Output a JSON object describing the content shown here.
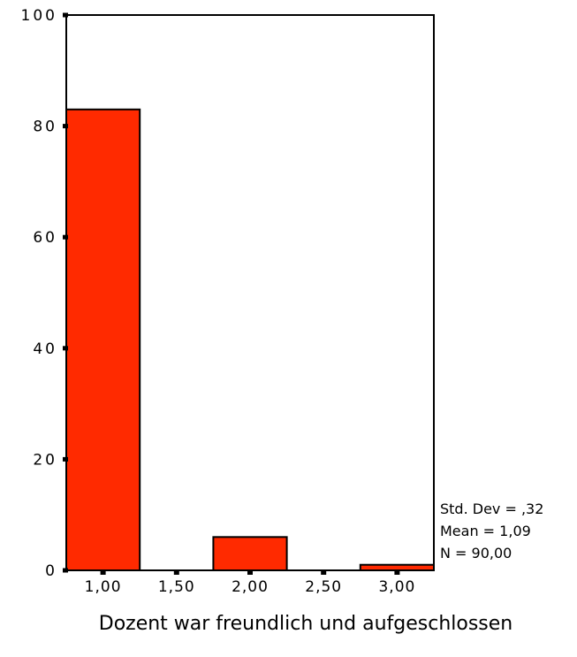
{
  "chart_data": {
    "type": "bar",
    "title": "",
    "xlabel": "Dozent war freundlich und aufgeschlossen",
    "ylabel": "",
    "ylim": [
      0,
      100
    ],
    "yticks": [
      0,
      20,
      40,
      60,
      80,
      100
    ],
    "xlim": [
      0.75,
      3.25
    ],
    "xticks": [
      "1,00",
      "1,50",
      "2,00",
      "2,50",
      "3,00"
    ],
    "bins": [
      {
        "center": 1.0,
        "value": 83
      },
      {
        "center": 1.5,
        "value": 0
      },
      {
        "center": 2.0,
        "value": 6
      },
      {
        "center": 2.5,
        "value": 0
      },
      {
        "center": 3.0,
        "value": 1
      }
    ],
    "bar_color": "#ff2a00",
    "stats": [
      "Std. Dev = ,32",
      "Mean = 1,09",
      "N = 90,00"
    ]
  }
}
